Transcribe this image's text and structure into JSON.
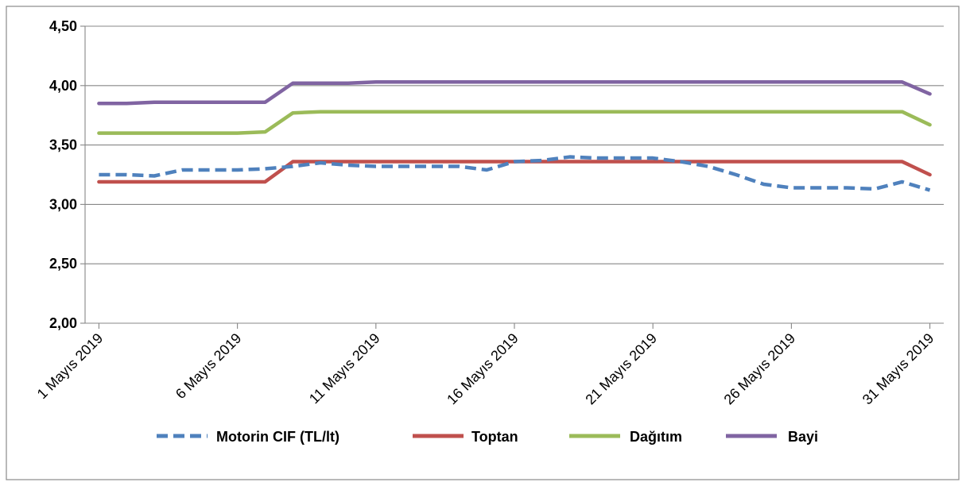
{
  "chart_data": {
    "type": "line",
    "title": "",
    "xlabel": "",
    "ylabel": "",
    "ylim": [
      2.0,
      4.5
    ],
    "y_ticks": [
      "2,00",
      "2,50",
      "3,00",
      "3,50",
      "4,00",
      "4,50"
    ],
    "x_tick_labels": [
      "1 Mayıs 2019",
      "6 Mayıs 2019",
      "11 Mayıs 2019",
      "16 Mayıs 2019",
      "21 Mayıs 2019",
      "26 Mayıs 2019",
      "31 Mayıs 2019"
    ],
    "grid": true,
    "legend_position": "bottom",
    "x": [
      "2019-05-01",
      "2019-05-02",
      "2019-05-03",
      "2019-05-04",
      "2019-05-05",
      "2019-05-06",
      "2019-05-07",
      "2019-05-08",
      "2019-05-09",
      "2019-05-10",
      "2019-05-11",
      "2019-05-12",
      "2019-05-13",
      "2019-05-14",
      "2019-05-15",
      "2019-05-16",
      "2019-05-17",
      "2019-05-18",
      "2019-05-19",
      "2019-05-20",
      "2019-05-21",
      "2019-05-22",
      "2019-05-23",
      "2019-05-24",
      "2019-05-25",
      "2019-05-26",
      "2019-05-27",
      "2019-05-28",
      "2019-05-29",
      "2019-05-30",
      "2019-05-31"
    ],
    "series": [
      {
        "name": "Motorin CIF (TL/lt)",
        "color": "#4f81bd",
        "dash": true,
        "values": [
          3.25,
          3.25,
          3.24,
          3.29,
          3.29,
          3.29,
          3.3,
          3.32,
          3.35,
          3.33,
          3.32,
          3.32,
          3.32,
          3.32,
          3.29,
          3.36,
          3.37,
          3.4,
          3.39,
          3.39,
          3.39,
          3.36,
          3.32,
          3.25,
          3.17,
          3.14,
          3.14,
          3.14,
          3.13,
          3.19,
          3.12
        ]
      },
      {
        "name": "Toptan",
        "color": "#c0504d",
        "dash": false,
        "values": [
          3.19,
          3.19,
          3.19,
          3.19,
          3.19,
          3.19,
          3.19,
          3.36,
          3.36,
          3.36,
          3.36,
          3.36,
          3.36,
          3.36,
          3.36,
          3.36,
          3.36,
          3.36,
          3.36,
          3.36,
          3.36,
          3.36,
          3.36,
          3.36,
          3.36,
          3.36,
          3.36,
          3.36,
          3.36,
          3.36,
          3.25
        ]
      },
      {
        "name": "Dağıtım",
        "color": "#9bbb59",
        "dash": false,
        "values": [
          3.6,
          3.6,
          3.6,
          3.6,
          3.6,
          3.6,
          3.61,
          3.77,
          3.78,
          3.78,
          3.78,
          3.78,
          3.78,
          3.78,
          3.78,
          3.78,
          3.78,
          3.78,
          3.78,
          3.78,
          3.78,
          3.78,
          3.78,
          3.78,
          3.78,
          3.78,
          3.78,
          3.78,
          3.78,
          3.78,
          3.67
        ]
      },
      {
        "name": "Bayi",
        "color": "#8064a2",
        "dash": false,
        "values": [
          3.85,
          3.85,
          3.86,
          3.86,
          3.86,
          3.86,
          3.86,
          4.02,
          4.02,
          4.02,
          4.03,
          4.03,
          4.03,
          4.03,
          4.03,
          4.03,
          4.03,
          4.03,
          4.03,
          4.03,
          4.03,
          4.03,
          4.03,
          4.03,
          4.03,
          4.03,
          4.03,
          4.03,
          4.03,
          4.03,
          3.93
        ]
      }
    ]
  }
}
